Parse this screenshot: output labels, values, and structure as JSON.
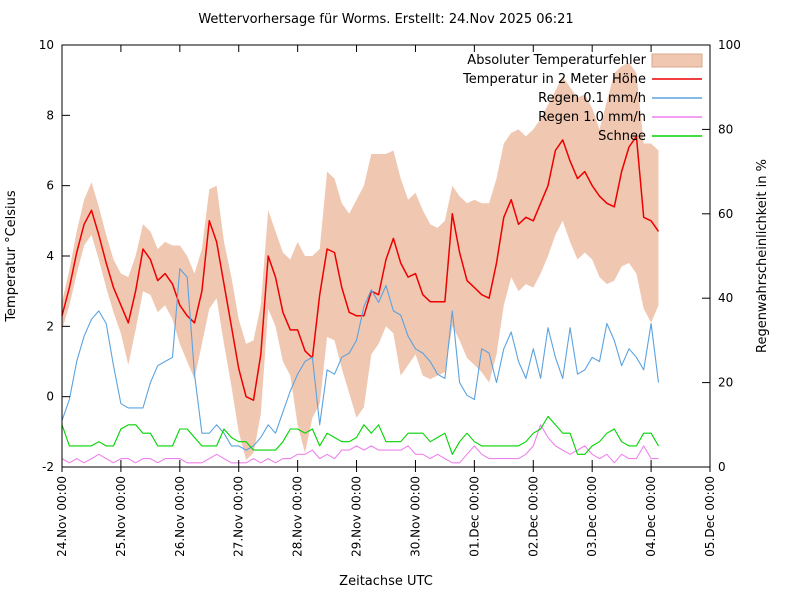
{
  "chart_data": {
    "type": "line",
    "title": "Wettervorhersage für Worms. Erstellt: 24.Nov 2025 06:21",
    "xlabel": "Zeitachse UTC",
    "ylabel_left": "Temperatur °Celsius",
    "ylabel_right": "Regenwahrscheinlichkeit in %",
    "grid": false,
    "legend_position": "top-right-inside",
    "x_axis": {
      "start_hour": 0,
      "end_hour": 264,
      "tick_every_hours": 24,
      "tick_labels": [
        "24.Nov 00:00",
        "25.Nov 00:00",
        "26.Nov 00:00",
        "27.Nov 00:00",
        "28.Nov 00:00",
        "29.Nov 00:00",
        "30.Nov 00:00",
        "01.Dec 00:00",
        "02.Dec 00:00",
        "03.Dec 00:00",
        "04.Dec 00:00",
        "05.Dec 00:00"
      ]
    },
    "y_left": {
      "min": -2,
      "max": 10,
      "ticks": [
        -2,
        0,
        2,
        4,
        6,
        8,
        10
      ]
    },
    "y_right": {
      "min": 0,
      "max": 100,
      "ticks": [
        0,
        20,
        40,
        60,
        80,
        100
      ]
    },
    "series_time": {
      "start_hour": 0,
      "step_hours": 3,
      "end_hour": 243
    },
    "band": {
      "key": "error-band",
      "label": "Absoluter Temperaturfehler",
      "axis": "left",
      "fill_color": "#f0c7b1",
      "edge_color": "#d8a88e",
      "upper": [
        2.7,
        3.6,
        4.7,
        5.6,
        6.1,
        5.4,
        4.6,
        3.9,
        3.5,
        3.4,
        4.0,
        4.9,
        4.7,
        4.2,
        4.4,
        4.3,
        4.3,
        4.0,
        3.5,
        4.2,
        5.9,
        6.0,
        4.4,
        3.4,
        2.2,
        1.5,
        1.6,
        2.6,
        5.3,
        4.7,
        4.1,
        3.9,
        4.4,
        4.0,
        4.0,
        4.2,
        6.4,
        6.2,
        5.5,
        5.2,
        5.6,
        6.0,
        6.9,
        6.9,
        6.9,
        7.0,
        6.2,
        5.6,
        5.8,
        5.3,
        4.9,
        4.8,
        5.0,
        6.0,
        5.7,
        5.5,
        5.6,
        5.5,
        5.5,
        6.2,
        7.2,
        7.5,
        7.6,
        7.4,
        7.6,
        7.9,
        8.3,
        8.7,
        9.1,
        8.8,
        8.5,
        8.6,
        8.2,
        7.6,
        8.4,
        9.2,
        9.4,
        9.5,
        9.2,
        7.2,
        7.2,
        7.0
      ],
      "lower": [
        1.9,
        2.6,
        3.5,
        4.3,
        4.6,
        3.9,
        3.1,
        2.4,
        1.8,
        0.9,
        1.9,
        3.0,
        2.9,
        2.4,
        2.6,
        2.2,
        1.5,
        1.0,
        0.5,
        1.5,
        2.5,
        2.8,
        1.5,
        0.3,
        -1.0,
        -1.8,
        -1.6,
        -0.5,
        2.5,
        2.0,
        1.0,
        0.6,
        -0.8,
        -1.6,
        -0.6,
        -0.2,
        1.7,
        1.6,
        0.8,
        0.1,
        -0.6,
        -0.3,
        1.2,
        1.5,
        2.0,
        1.8,
        0.6,
        0.9,
        1.2,
        0.6,
        0.5,
        0.6,
        0.7,
        2.0,
        1.6,
        1.1,
        0.9,
        0.7,
        0.4,
        1.2,
        2.6,
        3.4,
        3.0,
        3.2,
        3.1,
        3.5,
        4.0,
        4.6,
        5.0,
        4.4,
        3.9,
        4.1,
        3.9,
        3.4,
        3.2,
        3.3,
        3.7,
        3.8,
        3.5,
        2.5,
        2.1,
        2.6
      ]
    },
    "series": [
      {
        "key": "temperature-2m",
        "label": "Temperatur in 2 Meter Höhe",
        "axis": "left",
        "color": "#ee0000",
        "width": 1.5,
        "values": [
          2.3,
          3.1,
          4.1,
          4.9,
          5.3,
          4.6,
          3.8,
          3.1,
          2.6,
          2.1,
          3.0,
          4.2,
          3.9,
          3.3,
          3.5,
          3.2,
          2.6,
          2.3,
          2.1,
          3.0,
          5.0,
          4.4,
          3.2,
          2.0,
          0.8,
          0.0,
          -0.1,
          1.2,
          4.0,
          3.4,
          2.4,
          1.9,
          1.9,
          1.3,
          1.1,
          2.9,
          4.2,
          4.1,
          3.1,
          2.4,
          2.3,
          2.3,
          3.0,
          2.9,
          3.9,
          4.5,
          3.8,
          3.4,
          3.5,
          2.9,
          2.7,
          2.7,
          2.7,
          5.2,
          4.1,
          3.3,
          3.1,
          2.9,
          2.8,
          3.8,
          5.1,
          5.6,
          4.9,
          5.1,
          5.0,
          5.5,
          6.0,
          7.0,
          7.3,
          6.7,
          6.2,
          6.4,
          6.0,
          5.7,
          5.5,
          5.4,
          6.4,
          7.1,
          7.4,
          5.1,
          5.0,
          4.7
        ]
      },
      {
        "key": "rain-01mmh",
        "label": "Regen 0.1 mm/h",
        "axis": "right",
        "color": "#5ba3e0",
        "width": 1.1,
        "values": [
          11,
          16,
          25,
          31,
          35,
          37,
          34,
          24,
          15,
          14,
          14,
          14,
          20,
          24,
          25,
          26,
          47,
          45,
          22,
          8,
          8,
          10,
          8,
          5,
          5,
          4,
          5,
          7,
          10,
          8,
          13,
          18,
          22,
          25,
          26,
          10,
          23,
          22,
          26,
          27,
          30,
          38,
          42,
          39,
          43,
          37,
          36,
          31,
          28,
          27,
          25,
          22,
          21,
          37,
          20,
          17,
          16,
          28,
          27,
          20,
          28,
          32,
          25,
          21,
          28,
          21,
          33,
          26,
          21,
          33,
          22,
          23,
          26,
          25,
          34,
          30,
          24,
          28,
          26,
          23,
          34,
          20
        ]
      },
      {
        "key": "rain-10mmh",
        "label": "Regen 1.0 mm/h",
        "axis": "right",
        "color": "#ee82ee",
        "width": 1.1,
        "values": [
          2,
          1,
          2,
          1,
          2,
          3,
          2,
          1,
          2,
          2,
          1,
          2,
          2,
          1,
          2,
          2,
          2,
          1,
          1,
          1,
          2,
          3,
          2,
          1,
          1,
          1,
          2,
          1,
          2,
          1,
          2,
          2,
          3,
          3,
          4,
          2,
          3,
          2,
          4,
          4,
          5,
          4,
          5,
          4,
          4,
          4,
          4,
          5,
          3,
          3,
          2,
          3,
          2,
          1,
          1,
          3,
          5,
          3,
          2,
          2,
          2,
          2,
          2,
          3,
          5,
          10,
          7,
          5,
          4,
          3,
          4,
          5,
          3,
          2,
          3,
          1,
          3,
          2,
          2,
          5,
          2,
          2
        ]
      },
      {
        "key": "snow",
        "label": "Schnee",
        "axis": "right",
        "color": "#00d400",
        "width": 1.1,
        "values": [
          10,
          5,
          5,
          5,
          5,
          6,
          5,
          5,
          9,
          10,
          10,
          8,
          8,
          5,
          5,
          5,
          9,
          9,
          7,
          5,
          5,
          5,
          9,
          7,
          6,
          6,
          4,
          4,
          4,
          4,
          6,
          9,
          9,
          8,
          9,
          5,
          8,
          7,
          6,
          6,
          7,
          10,
          8,
          10,
          6,
          6,
          6,
          8,
          8,
          8,
          6,
          7,
          8,
          3,
          6,
          8,
          6,
          5,
          5,
          5,
          5,
          5,
          5,
          6,
          8,
          9,
          12,
          10,
          8,
          8,
          3,
          3,
          5,
          6,
          8,
          9,
          6,
          5,
          5,
          8,
          8,
          5
        ]
      }
    ],
    "legend": [
      {
        "label": "Absoluter Temperaturfehler",
        "swatch": "band",
        "color": "#f0c7b1",
        "edge": "#d8a88e",
        "key": "error-band"
      },
      {
        "label": "Temperatur in 2 Meter Höhe",
        "swatch": "line",
        "color": "#ee0000",
        "key": "temperature-2m"
      },
      {
        "label": "Regen 0.1 mm/h",
        "swatch": "line",
        "color": "#5ba3e0",
        "key": "rain-01mmh"
      },
      {
        "label": "Regen 1.0 mm/h",
        "swatch": "line",
        "color": "#ee82ee",
        "key": "rain-10mmh"
      },
      {
        "label": "Schnee",
        "swatch": "line",
        "color": "#00d400",
        "key": "snow"
      }
    ]
  }
}
